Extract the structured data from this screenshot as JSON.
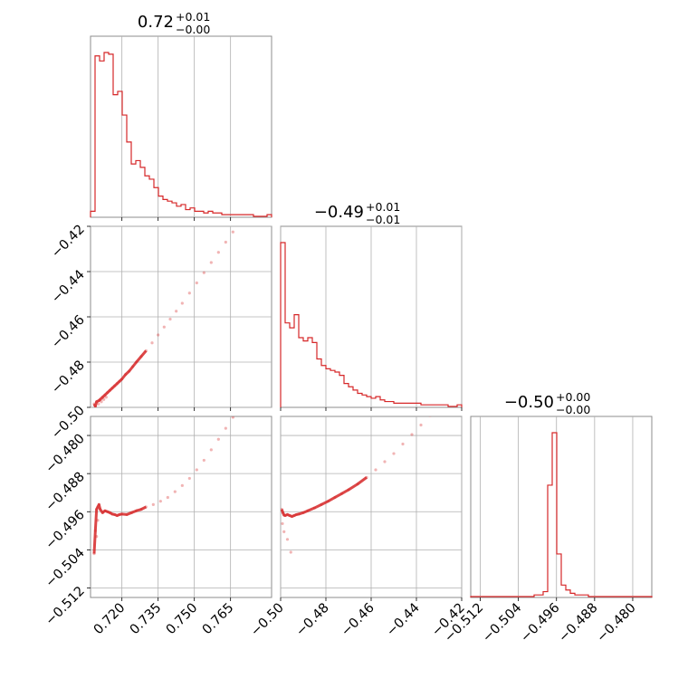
{
  "chart_data": {
    "type": "corner",
    "color": "#d62728",
    "grid": true,
    "parameters": [
      {
        "range": [
          0.707,
          0.782
        ],
        "ticks": [
          0.72,
          0.735,
          0.75,
          0.765
        ],
        "tick_labels": [
          "0.720",
          "0.735",
          "0.750",
          "0.765"
        ],
        "title": {
          "main": "0.72",
          "up": "+0.01",
          "down": "−0.00"
        },
        "hist": [
          3,
          95,
          92,
          97,
          96,
          72,
          74,
          60,
          44,
          31,
          33,
          29,
          24,
          22,
          17,
          12,
          10,
          9,
          8,
          6,
          7,
          4,
          5,
          3,
          3,
          2,
          3,
          2,
          2,
          1,
          1,
          1,
          1,
          1,
          1,
          1,
          0,
          0,
          0,
          1
        ]
      },
      {
        "range": [
          -0.5,
          -0.42
        ],
        "ticks": [
          -0.5,
          -0.48,
          -0.46,
          -0.44,
          -0.42
        ],
        "tick_labels": [
          "−0.50",
          "−0.48",
          "−0.46",
          "−0.44",
          "−0.42"
        ],
        "title": {
          "main": "−0.49",
          "up": "+0.01",
          "down": "−0.01"
        },
        "hist": [
          100,
          51,
          48,
          56,
          42,
          40,
          42,
          39,
          29,
          25,
          23,
          22,
          21,
          19,
          14,
          12,
          10,
          8,
          7,
          6,
          5,
          6,
          4,
          3,
          3,
          2,
          2,
          2,
          2,
          2,
          2,
          1,
          1,
          1,
          1,
          1,
          1,
          0,
          0,
          1
        ]
      },
      {
        "range": [
          -0.514,
          -0.476
        ],
        "ticks": [
          -0.512,
          -0.504,
          -0.496,
          -0.488,
          -0.48
        ],
        "tick_labels": [
          "−0.512",
          "−0.504",
          "−0.496",
          "−0.488",
          "−0.480"
        ],
        "title": {
          "main": "−0.50",
          "up": "+0.00",
          "down": "−0.00"
        },
        "hist": [
          0,
          0,
          0,
          0,
          0,
          0,
          0,
          0,
          0,
          0,
          0,
          0,
          0,
          0,
          1,
          1,
          3,
          68,
          100,
          26,
          7,
          4,
          2,
          1,
          1,
          1,
          0,
          0,
          0,
          0,
          0,
          0,
          0,
          0,
          0,
          0,
          0,
          0,
          0,
          0
        ]
      }
    ],
    "scatter": {
      "p1_vs_p0": [
        [
          0.7085,
          -0.4985
        ],
        [
          0.709,
          -0.4995
        ],
        [
          0.7095,
          -0.4975
        ],
        [
          0.7105,
          -0.497
        ],
        [
          0.711,
          -0.4965
        ],
        [
          0.712,
          -0.4955
        ],
        [
          0.713,
          -0.4945
        ],
        [
          0.714,
          -0.4935
        ],
        [
          0.715,
          -0.4925
        ],
        [
          0.716,
          -0.4915
        ],
        [
          0.717,
          -0.4905
        ],
        [
          0.718,
          -0.4895
        ],
        [
          0.719,
          -0.4885
        ],
        [
          0.72,
          -0.4875
        ],
        [
          0.7215,
          -0.4855
        ],
        [
          0.723,
          -0.484
        ],
        [
          0.7245,
          -0.482
        ],
        [
          0.726,
          -0.48
        ],
        [
          0.728,
          -0.4775
        ],
        [
          0.73,
          -0.475
        ],
        [
          0.7325,
          -0.4715
        ],
        [
          0.735,
          -0.468
        ],
        [
          0.7375,
          -0.4645
        ],
        [
          0.74,
          -0.461
        ],
        [
          0.7425,
          -0.4575
        ],
        [
          0.745,
          -0.454
        ],
        [
          0.748,
          -0.4495
        ],
        [
          0.751,
          -0.445
        ],
        [
          0.754,
          -0.4405
        ],
        [
          0.757,
          -0.436
        ],
        [
          0.76,
          -0.4315
        ],
        [
          0.763,
          -0.427
        ],
        [
          0.766,
          -0.4225
        ],
        [
          0.7685,
          -0.419
        ],
        [
          0.7103,
          -0.4985
        ],
        [
          0.7115,
          -0.4975
        ],
        [
          0.7125,
          -0.4965
        ],
        [
          0.7135,
          -0.4955
        ]
      ],
      "p2_vs_p0": [
        [
          0.7085,
          -0.5048
        ],
        [
          0.709,
          -0.5
        ],
        [
          0.7095,
          -0.4955
        ],
        [
          0.71,
          -0.495
        ],
        [
          0.7105,
          -0.4945
        ],
        [
          0.711,
          -0.4955
        ],
        [
          0.712,
          -0.4962
        ],
        [
          0.713,
          -0.4958
        ],
        [
          0.714,
          -0.496
        ],
        [
          0.715,
          -0.4962
        ],
        [
          0.716,
          -0.4965
        ],
        [
          0.717,
          -0.4966
        ],
        [
          0.718,
          -0.4968
        ],
        [
          0.719,
          -0.4966
        ],
        [
          0.72,
          -0.4965
        ],
        [
          0.722,
          -0.4966
        ],
        [
          0.724,
          -0.4962
        ],
        [
          0.726,
          -0.4958
        ],
        [
          0.728,
          -0.4955
        ],
        [
          0.73,
          -0.495
        ],
        [
          0.733,
          -0.4945
        ],
        [
          0.736,
          -0.4938
        ],
        [
          0.739,
          -0.493
        ],
        [
          0.742,
          -0.4918
        ],
        [
          0.745,
          -0.4905
        ],
        [
          0.748,
          -0.489
        ],
        [
          0.751,
          -0.4872
        ],
        [
          0.754,
          -0.4852
        ],
        [
          0.757,
          -0.483
        ],
        [
          0.76,
          -0.4808
        ],
        [
          0.763,
          -0.4785
        ],
        [
          0.766,
          -0.4762
        ],
        [
          0.768,
          -0.4748
        ],
        [
          0.7095,
          -0.5012
        ],
        [
          0.71,
          -0.4978
        ]
      ],
      "p2_vs_p1": [
        [
          -0.4995,
          -0.4955
        ],
        [
          -0.499,
          -0.4962
        ],
        [
          -0.4985,
          -0.4967
        ],
        [
          -0.498,
          -0.4968
        ],
        [
          -0.497,
          -0.4966
        ],
        [
          -0.496,
          -0.4968
        ],
        [
          -0.495,
          -0.497
        ],
        [
          -0.494,
          -0.4968
        ],
        [
          -0.493,
          -0.4966
        ],
        [
          -0.492,
          -0.4965
        ],
        [
          -0.49,
          -0.4962
        ],
        [
          -0.488,
          -0.4958
        ],
        [
          -0.485,
          -0.4952
        ],
        [
          -0.482,
          -0.4945
        ],
        [
          -0.479,
          -0.4938
        ],
        [
          -0.476,
          -0.493
        ],
        [
          -0.473,
          -0.4922
        ],
        [
          -0.47,
          -0.4914
        ],
        [
          -0.466,
          -0.4902
        ],
        [
          -0.462,
          -0.4888
        ],
        [
          -0.458,
          -0.4872
        ],
        [
          -0.454,
          -0.4855
        ],
        [
          -0.45,
          -0.4838
        ],
        [
          -0.446,
          -0.4818
        ],
        [
          -0.442,
          -0.4798
        ],
        [
          -0.438,
          -0.4778
        ],
        [
          -0.434,
          -0.4758
        ],
        [
          -0.43,
          -0.4738
        ],
        [
          -0.426,
          -0.4718
        ],
        [
          -0.4985,
          -0.5002
        ],
        [
          -0.497,
          -0.5018
        ],
        [
          -0.4955,
          -0.5045
        ],
        [
          -0.4992,
          -0.4985
        ]
      ]
    }
  }
}
